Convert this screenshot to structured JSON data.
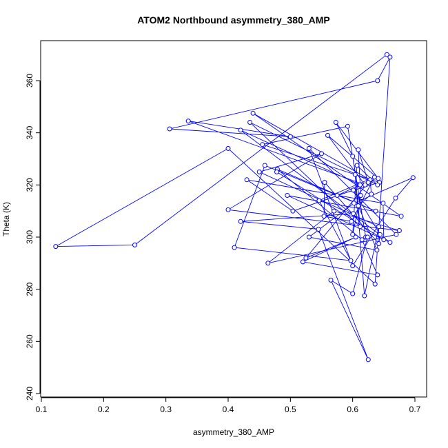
{
  "chart_data": {
    "type": "line",
    "title": "ATOM2 Northbound asymmetry_380_AMP",
    "xlabel": "asymmetry_380_AMP",
    "ylabel": "Theta (K)",
    "xlim": [
      0.1,
      0.7
    ],
    "ylim": [
      240,
      370
    ],
    "x_ticks": [
      0.1,
      0.2,
      0.3,
      0.4,
      0.5,
      0.6,
      0.7
    ],
    "y_ticks": [
      240,
      260,
      280,
      300,
      320,
      340,
      360
    ],
    "series_color": "#0000ff",
    "marker": "open-circle",
    "series": [
      {
        "x": [
          0.655,
          0.25,
          0.123,
          0.4,
          0.636,
          0.66,
          0.64,
          0.306,
          0.5,
          0.336,
          0.62,
          0.56,
          0.641,
          0.573,
          0.6,
          0.621,
          0.592,
          0.455,
          0.643,
          0.575,
          0.612,
          0.42,
          0.66,
          0.495,
          0.678,
          0.44,
          0.628,
          0.63,
          0.609,
          0.639,
          0.53,
          0.602,
          0.697,
          0.669,
          0.6,
          0.53,
          0.67,
          0.464,
          0.57,
          0.675,
          0.4,
          0.55,
          0.45,
          0.642,
          0.619,
          0.604,
          0.612,
          0.435,
          0.64,
          0.607,
          0.6,
          0.613,
          0.609,
          0.625,
          0.525,
          0.605,
          0.52,
          0.64,
          0.615,
          0.479,
          0.637,
          0.459,
          0.41,
          0.597,
          0.546,
          0.635,
          0.598,
          0.554,
          0.555,
          0.642,
          0.644,
          0.601,
          0.504,
          0.43,
          0.649,
          0.65,
          0.478
        ],
        "y": [
          370.0,
          297.0,
          296.4,
          334.0,
          282.0,
          369.0,
          360.0,
          341.5,
          338.5,
          344.5,
          320.0,
          339.0,
          322.5,
          344.0,
          331.0,
          300.0,
          342.5,
          335.5,
          321.0,
          316.0,
          320.0,
          341.0,
          298.0,
          316.0,
          308.0,
          347.5,
          322.0,
          316.5,
          312.0,
          295.0,
          300.0,
          313.0,
          322.8,
          315.0,
          289.0,
          334.0,
          301.0,
          290.0,
          310.0,
          302.5,
          310.5,
          332.0,
          325.0,
          304.0,
          277.5,
          324.0,
          304.0,
          344.0,
          320.0,
          327.5,
          301.0,
          316.0,
          333.5,
          321.0,
          292.0,
          300.0,
          290.5,
          285.5,
          299.0,
          326.0,
          310.0,
          327.5,
          296.0,
          291.0,
          314.0,
          323.0,
          306.0,
          308.0,
          321.0,
          297.5,
          301.0,
          318.0,
          310.0,
          322.0,
          313.0,
          299.0,
          325.0
        ]
      },
      {
        "x": [
          0.601,
          0.42,
          0.545,
          0.625,
          0.565,
          0.6,
          0.624
        ],
        "y": [
          309.0,
          306.0,
          303.0,
          253.0,
          283.5,
          278.3,
          300.0
        ]
      }
    ],
    "grid": false,
    "legend": "none"
  }
}
